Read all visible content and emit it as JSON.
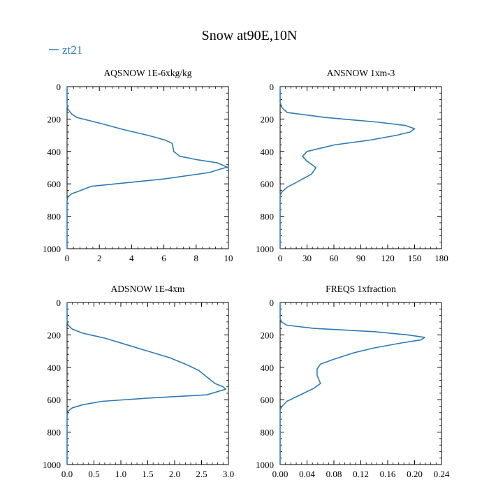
{
  "figure": {
    "title": "Snow at90E,10N",
    "legend": {
      "label": "zt21",
      "color": "#2e7ab6",
      "placement": "top-left"
    }
  },
  "chart_data": [
    {
      "type": "line",
      "title": "AQSNOW  1E-6xkg/kg",
      "xlabel": "",
      "ylabel": "",
      "xlim": [
        0,
        10
      ],
      "ylim": [
        1000,
        0
      ],
      "xticks": [
        0,
        2,
        4,
        6,
        8,
        10
      ],
      "xtick_labels": [
        "0",
        "2",
        "4",
        "6",
        "8",
        "10"
      ],
      "yticks": [
        0,
        200,
        400,
        600,
        800,
        1000
      ],
      "ytick_labels": [
        "0",
        "200",
        "400",
        "600",
        "800",
        "1000"
      ],
      "grid": false,
      "series": [
        {
          "name": "zt21",
          "color": "#2e7ab6",
          "x": [
            0,
            0,
            0.05,
            0.3,
            0.6,
            1.2,
            2.2,
            3.5,
            5.0,
            6.1,
            6.5,
            6.6,
            6.6,
            7.0,
            8.0,
            9.3,
            10.0,
            9.8,
            8.8,
            6.0,
            3.0,
            1.5,
            0.6,
            0.3,
            0.05,
            0,
            0
          ],
          "y": [
            0,
            110,
            140,
            170,
            190,
            205,
            230,
            265,
            300,
            330,
            350,
            390,
            400,
            430,
            450,
            470,
            500,
            500,
            530,
            570,
            600,
            615,
            650,
            660,
            680,
            700,
            1000
          ]
        }
      ]
    },
    {
      "type": "line",
      "title": "ANSNOW  1xm-3",
      "xlabel": "",
      "ylabel": "",
      "xlim": [
        0,
        180
      ],
      "ylim": [
        1000,
        0
      ],
      "xticks": [
        0,
        30,
        60,
        90,
        120,
        150,
        180
      ],
      "xtick_labels": [
        "0",
        "30",
        "60",
        "90",
        "120",
        "150",
        "180"
      ],
      "yticks": [
        0,
        200,
        400,
        600,
        800,
        1000
      ],
      "ytick_labels": [
        "0",
        "200",
        "400",
        "600",
        "800",
        "1000"
      ],
      "grid": false,
      "series": [
        {
          "name": "zt21",
          "color": "#2e7ab6",
          "x": [
            0,
            0,
            2,
            8,
            50,
            110,
            140,
            150,
            145,
            130,
            100,
            60,
            45,
            30,
            25,
            30,
            40,
            35,
            25,
            15,
            8,
            2,
            0,
            0
          ],
          "y": [
            0,
            100,
            130,
            160,
            190,
            220,
            240,
            260,
            280,
            300,
            330,
            360,
            380,
            400,
            430,
            460,
            500,
            540,
            570,
            600,
            620,
            650,
            670,
            1000
          ]
        }
      ]
    },
    {
      "type": "line",
      "title": "ADSNOW  1E-4xm",
      "xlabel": "",
      "ylabel": "",
      "xlim": [
        0,
        3.0
      ],
      "ylim": [
        1000,
        0
      ],
      "xticks": [
        0,
        0.5,
        1.0,
        1.5,
        2.0,
        2.5,
        3.0
      ],
      "xtick_labels": [
        "0.0",
        "0.5",
        "1.0",
        "1.5",
        "2.0",
        "2.5",
        "3.0"
      ],
      "yticks": [
        0,
        200,
        400,
        600,
        800,
        1000
      ],
      "ytick_labels": [
        "0",
        "200",
        "400",
        "600",
        "800",
        "1000"
      ],
      "grid": false,
      "series": [
        {
          "name": "zt21",
          "color": "#2e7ab6",
          "x": [
            0,
            0,
            0.02,
            0.1,
            0.3,
            0.7,
            1.1,
            1.5,
            1.9,
            2.2,
            2.45,
            2.6,
            2.75,
            2.9,
            2.95,
            2.6,
            1.5,
            0.65,
            0.3,
            0.1,
            0.02,
            0,
            0
          ],
          "y": [
            0,
            110,
            140,
            165,
            190,
            220,
            260,
            300,
            340,
            380,
            420,
            460,
            500,
            520,
            535,
            570,
            590,
            610,
            630,
            650,
            670,
            700,
            1000
          ]
        }
      ]
    },
    {
      "type": "line",
      "title": "FREQS  1xfraction",
      "xlabel": "",
      "ylabel": "",
      "xlim": [
        0,
        0.24
      ],
      "ylim": [
        1000,
        0
      ],
      "xticks": [
        0,
        0.04,
        0.08,
        0.12,
        0.16,
        0.2,
        0.24
      ],
      "xtick_labels": [
        "0.00",
        "0.04",
        "0.08",
        "0.12",
        "0.16",
        "0.20",
        "0.24"
      ],
      "yticks": [
        0,
        200,
        400,
        600,
        800,
        1000
      ],
      "ytick_labels": [
        "0",
        "200",
        "400",
        "600",
        "800",
        "1000"
      ],
      "grid": false,
      "series": [
        {
          "name": "zt21",
          "color": "#2e7ab6",
          "x": [
            0,
            0,
            0.002,
            0.01,
            0.05,
            0.14,
            0.19,
            0.215,
            0.21,
            0.18,
            0.14,
            0.11,
            0.08,
            0.06,
            0.055,
            0.055,
            0.06,
            0.05,
            0.035,
            0.02,
            0.01,
            0.003,
            0,
            0
          ],
          "y": [
            0,
            100,
            120,
            140,
            160,
            180,
            200,
            215,
            230,
            250,
            280,
            310,
            350,
            380,
            410,
            450,
            500,
            530,
            560,
            590,
            610,
            640,
            660,
            1000
          ]
        }
      ]
    }
  ]
}
